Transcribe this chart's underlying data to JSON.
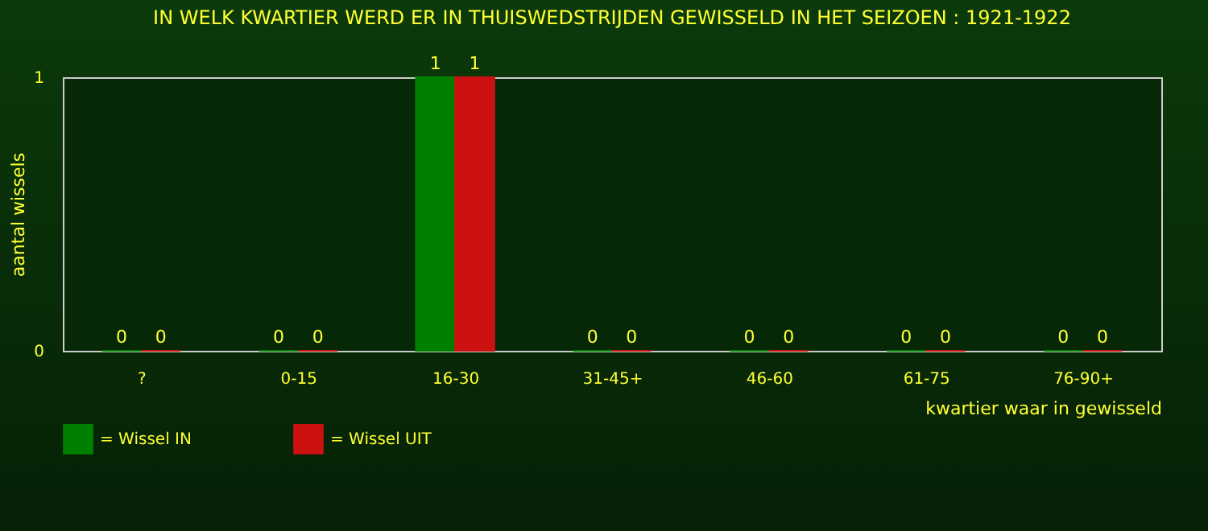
{
  "chart_data": {
    "type": "bar",
    "title": "IN WELK KWARTIER WERD ER IN THUISWEDSTRIJDEN GEWISSELD IN HET SEIZOEN : 1921-1922",
    "xlabel": "kwartier waar in gewisseld",
    "ylabel": "aantal wissels",
    "categories": [
      "?",
      "0-15",
      "16-30",
      "31-45+",
      "46-60",
      "61-75",
      "76-90+"
    ],
    "series": [
      {
        "name": "= Wissel IN",
        "color": "#008000",
        "values": [
          0,
          0,
          1,
          0,
          0,
          0,
          0
        ]
      },
      {
        "name": "= Wissel UIT",
        "color": "#cc1111",
        "values": [
          0,
          0,
          1,
          0,
          0,
          0,
          0
        ]
      }
    ],
    "ylim": [
      0,
      1
    ],
    "yticks": [
      0,
      1
    ],
    "grid": false,
    "legend": "bottom",
    "data_labels": true
  }
}
